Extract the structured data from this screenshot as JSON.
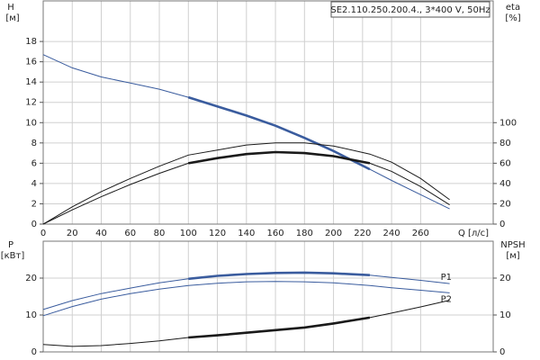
{
  "chart_data": [
    {
      "type": "line",
      "title": "SE2.110.250.200.4., 3*400 V, 50Hz",
      "y_label": "H",
      "y_unit": "[м]",
      "y2_label": "eta",
      "y2_unit": "[%]",
      "x_label": "Q [л/с]",
      "x": [
        0,
        20,
        40,
        60,
        80,
        100,
        120,
        140,
        160,
        180,
        200,
        225,
        240,
        260,
        280
      ],
      "xlim": [
        0,
        310
      ],
      "xticks": [
        0,
        20,
        40,
        60,
        80,
        100,
        120,
        140,
        160,
        180,
        200,
        220,
        240,
        260
      ],
      "x_tick_labels": true,
      "ylim": [
        0,
        22
      ],
      "yticks": [
        0,
        2,
        4,
        6,
        8,
        10,
        12,
        14,
        16,
        18
      ],
      "y2lim": [
        0,
        220
      ],
      "y2ticks": [
        0,
        20,
        40,
        60,
        80,
        100
      ],
      "grid": true,
      "series": [
        {
          "color": "#3a5c9e",
          "thick": [
            100,
            225
          ],
          "values": [
            16.7,
            15.4,
            14.5,
            13.9,
            13.3,
            12.5,
            11.6,
            10.7,
            9.7,
            8.5,
            7.2,
            5.4,
            4.3,
            2.9,
            1.5
          ]
        },
        {
          "color": "#1a1a1a",
          "axis": "y2",
          "values": [
            0,
            17,
            32,
            45,
            57,
            68,
            73,
            78,
            80,
            80,
            77,
            69,
            61,
            45,
            24
          ]
        },
        {
          "color": "#1a1a1a",
          "axis": "y2",
          "thick": [
            100,
            225
          ],
          "values": [
            0,
            14,
            27,
            39,
            50,
            60,
            65,
            69,
            71,
            70,
            67,
            60,
            52,
            37,
            19
          ]
        }
      ]
    },
    {
      "type": "line",
      "y_label": "P",
      "y_unit": "[кВт]",
      "y2_label": "NPSH",
      "y2_unit": "[м]",
      "x": [
        0,
        20,
        40,
        60,
        80,
        100,
        120,
        140,
        160,
        180,
        200,
        225,
        240,
        260,
        280
      ],
      "xlim": [
        0,
        310
      ],
      "xticks": [
        0,
        20,
        40,
        60,
        80,
        100,
        120,
        140,
        160,
        180,
        200,
        220,
        240,
        260
      ],
      "x_tick_labels": false,
      "ylim": [
        0,
        30
      ],
      "yticks": [
        0,
        10,
        20
      ],
      "y2lim": [
        0,
        30
      ],
      "y2ticks": [
        0,
        10,
        20
      ],
      "grid": true,
      "series": [
        {
          "name": "P1",
          "color": "#3a5c9e",
          "thick": [
            100,
            225
          ],
          "values": [
            11.5,
            13.9,
            15.8,
            17.3,
            18.7,
            19.8,
            20.6,
            21.1,
            21.4,
            21.5,
            21.3,
            20.8,
            20.2,
            19.4,
            18.5
          ]
        },
        {
          "name": "P2",
          "color": "#3a5c9e",
          "values": [
            9.8,
            12.3,
            14.3,
            15.8,
            17,
            18,
            18.6,
            19,
            19.1,
            19,
            18.7,
            18,
            17.4,
            16.7,
            16
          ]
        },
        {
          "color": "#1a1a1a",
          "axis": "y2",
          "thick": [
            100,
            225
          ],
          "values": [
            2,
            1.5,
            1.7,
            2.3,
            3,
            3.9,
            4.5,
            5.2,
            5.9,
            6.6,
            7.7,
            9.3,
            10.5,
            12.2,
            14
          ]
        }
      ]
    }
  ]
}
